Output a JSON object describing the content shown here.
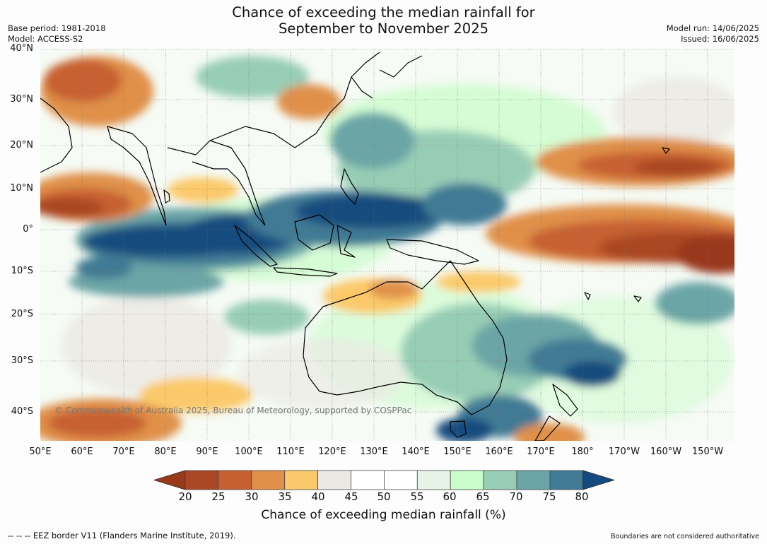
{
  "title": {
    "line1": "Chance of exceeding the median rainfall for",
    "line2": "September to November 2025"
  },
  "meta": {
    "base_period": "Base period: 1981-2018",
    "model": "Model: ACCESS-S2",
    "model_run": "Model run: 14/06/2025",
    "issued": "Issued: 16/06/2025"
  },
  "map": {
    "latitude_labels": [
      "40°N",
      "30°N",
      "20°N",
      "10°N",
      "0°",
      "10°S",
      "20°S",
      "30°S",
      "40°S"
    ],
    "longitude_labels": [
      "50°E",
      "60°E",
      "70°E",
      "80°E",
      "90°E",
      "100°E",
      "110°E",
      "120°E",
      "130°E",
      "140°E",
      "150°E",
      "160°E",
      "170°E",
      "180°",
      "170°W",
      "160°W",
      "150°W"
    ],
    "copyright": "© Commonwealth of Australia 2025, Bureau of Meteorology, supported by COSPPac"
  },
  "legend": {
    "ticks": [
      "20",
      "25",
      "30",
      "35",
      "40",
      "45",
      "50",
      "55",
      "60",
      "65",
      "70",
      "75",
      "80"
    ],
    "colors": [
      "#a94623",
      "#c76030",
      "#e0904a",
      "#fbc96a",
      "#ebe9e4",
      "#ffffff",
      "#ffffff",
      "#e6f3e6",
      "#c9fcc9",
      "#98cdb5",
      "#6ca5a6",
      "#417a94"
    ],
    "low_color": "#99391a",
    "high_color": "#144b7e",
    "title": "Chance of exceeding median rainfall (%)"
  },
  "footer": {
    "eez": "--  --  -- EEZ border V11 (Flanders Marine Institute, 2019).",
    "boundaries": "Boundaries are not considered authoritative"
  }
}
